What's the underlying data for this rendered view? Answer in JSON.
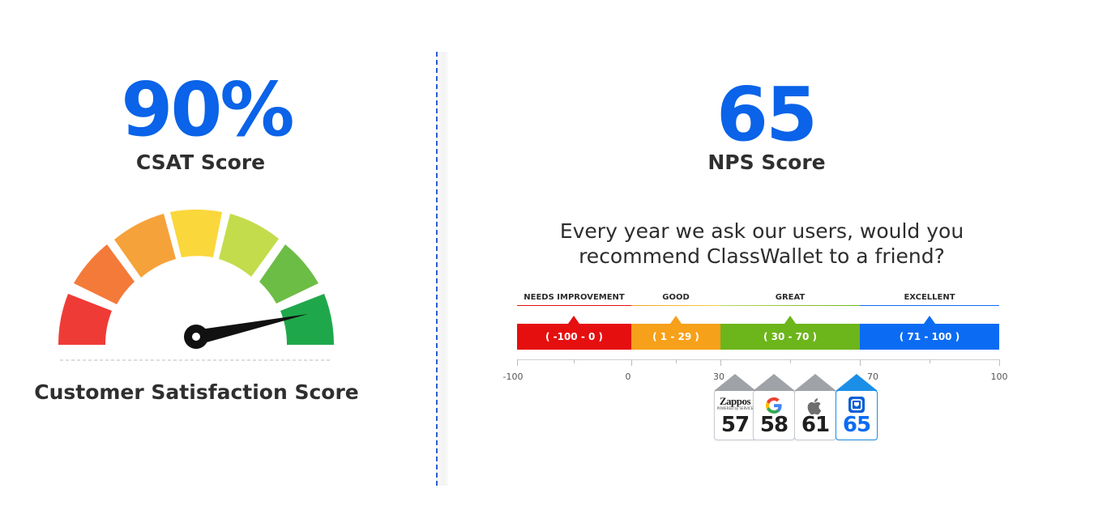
{
  "csat": {
    "value": "90%",
    "label": "CSAT Score",
    "caption": "Customer Satisfaction Score",
    "gauge_level": 0.9
  },
  "nps": {
    "value": "65",
    "label": "NPS Score",
    "question_line1": "Every year we ask our users, would you",
    "question_line2": "recommend ClassWallet to a friend?",
    "segments": [
      {
        "title": "NEEDS IMPROVEMENT",
        "range": "( -100 - 0 )",
        "color": "#e60f0f"
      },
      {
        "title": "GOOD",
        "range": "( 1 - 29 )",
        "color": "#f7a01a"
      },
      {
        "title": "GREAT",
        "range": "( 30 - 70 )",
        "color": "#6cb51b"
      },
      {
        "title": "EXCELLENT",
        "range": "( 71 - 100 )",
        "color": "#0b6cf3"
      }
    ],
    "axis_ticks": [
      "-100",
      "0",
      "30",
      "70",
      "100"
    ],
    "benchmarks": [
      {
        "brand": "Zappos",
        "brand_sub": "POWERED by SERVICE",
        "score": "57",
        "icon": "zappos-logo"
      },
      {
        "brand": "Google",
        "score": "58",
        "icon": "google-icon"
      },
      {
        "brand": "Apple",
        "score": "61",
        "icon": "apple-icon"
      },
      {
        "brand": "ClassWallet",
        "score": "65",
        "icon": "classwallet-icon",
        "highlight": "#1b8fe8"
      }
    ]
  }
}
